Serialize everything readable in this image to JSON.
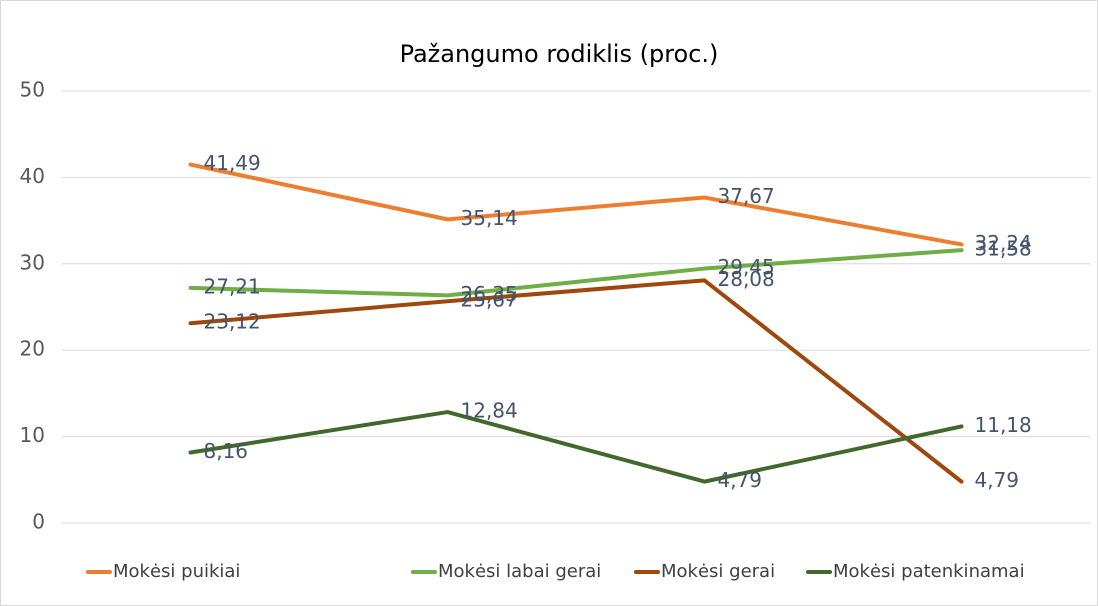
{
  "chart_data": {
    "type": "line",
    "title": "Pažangumo rodiklis (proc.)",
    "categories": [
      null,
      null,
      null,
      null
    ],
    "series": [
      {
        "name": "Mokėsi puikiai",
        "color": "#ed7d31",
        "values": [
          41.49,
          35.14,
          37.67,
          32.24
        ],
        "value_labels": [
          "41,49",
          "35,14",
          "37,67",
          "32,24"
        ]
      },
      {
        "name": "Mokėsi labai gerai",
        "color": "#70ad47",
        "values": [
          27.21,
          26.35,
          29.45,
          31.58
        ],
        "value_labels": [
          "27,21",
          "26,35",
          "29,45",
          "31,58"
        ]
      },
      {
        "name": "Mokėsi gerai",
        "color": "#9e480e",
        "values": [
          23.12,
          25.67,
          28.08,
          4.79
        ],
        "value_labels": [
          "23,12",
          "25,67",
          "28,08",
          "4,79"
        ]
      },
      {
        "name": "Mokėsi patenkinamai",
        "color": "#43682b",
        "values": [
          8.16,
          12.84,
          4.79,
          11.18
        ],
        "value_labels": [
          "8,16",
          "12,84",
          "4,79",
          "11,18"
        ]
      }
    ],
    "ylim": [
      0,
      50
    ],
    "yticks": [
      0,
      10,
      20,
      30,
      40,
      50
    ],
    "grid": true,
    "legend": "bottom"
  }
}
